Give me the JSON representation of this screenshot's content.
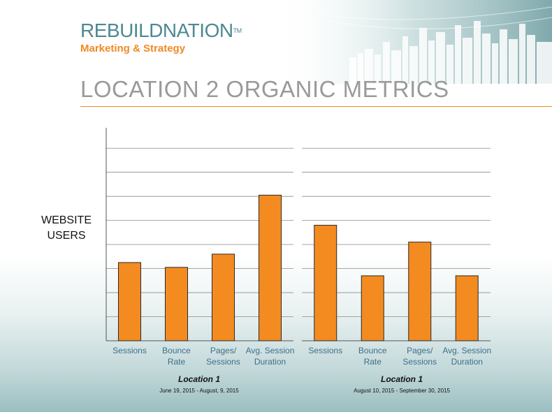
{
  "header": {
    "logo_main": "REBUILDNATION",
    "logo_tm": "TM",
    "logo_sub": "Marketing & Strategy",
    "title": "LOCATION 2 ORGANIC METRICS"
  },
  "colors": {
    "bar": "#f38b20",
    "bar_stroke": "#2a2a2a",
    "grid": "#8a8a8a",
    "axis": "#555555",
    "tick_label": "#3c6f8a",
    "title": "#9a9a9a",
    "accent": "#f08a24"
  },
  "chart_data": [
    {
      "type": "bar",
      "ylabel": "WEBSITE\nUSERS",
      "categories": [
        "Sessions",
        "Bounce\nRate",
        "Pages/\nSessions",
        "Avg. Session\nDuration"
      ],
      "values": [
        3.25,
        3.05,
        3.6,
        6.05
      ],
      "ylim": [
        0,
        8.5
      ],
      "grid": true,
      "caption_title": "Location 1",
      "caption_date": "June 19, 2015 - August, 9, 2015"
    },
    {
      "type": "bar",
      "categories": [
        "Sessions",
        "Bounce\nRate",
        "Pages/\nSessions",
        "Avg. Session\nDuration"
      ],
      "values": [
        4.8,
        2.7,
        4.1,
        2.7
      ],
      "ylim": [
        0,
        8.5
      ],
      "grid": true,
      "caption_title": "Location 1",
      "caption_date": "August 10, 2015 - September 30, 2015"
    }
  ]
}
